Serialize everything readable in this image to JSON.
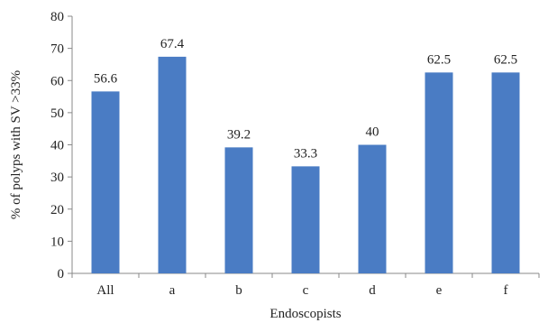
{
  "chart_data": {
    "type": "bar",
    "title": "",
    "xlabel": "Endoscopists",
    "ylabel": "% of polyps with SV >33%",
    "categories": [
      "All",
      "a",
      "b",
      "c",
      "d",
      "e",
      "f"
    ],
    "values": [
      56.6,
      67.4,
      39.2,
      33.3,
      40,
      62.5,
      62.5
    ],
    "data_labels": [
      "56.6",
      "67.4",
      "39.2",
      "33.3",
      "40",
      "62.5",
      "62.5"
    ],
    "ylim": [
      0,
      80
    ],
    "yticks": [
      0,
      10,
      20,
      30,
      40,
      50,
      60,
      70,
      80
    ],
    "bar_color": "#4A7CC4",
    "grid": false,
    "legend": "none"
  }
}
